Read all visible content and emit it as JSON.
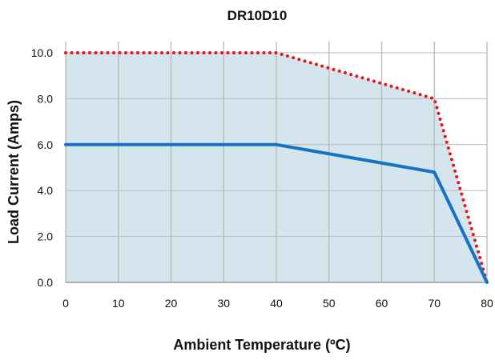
{
  "chart_data": {
    "type": "line",
    "title": "DR10D10",
    "xlabel": "Ambient Temperature (ºC)",
    "ylabel": "Load Current (Amps)",
    "xlim": [
      0,
      80
    ],
    "ylim": [
      0,
      10
    ],
    "x_ticks": [
      "0",
      "10",
      "20",
      "30",
      "40",
      "50",
      "60",
      "70",
      "80"
    ],
    "y_ticks": [
      "0.0",
      "2.0",
      "4.0",
      "6.0",
      "8.0",
      "10.0"
    ],
    "grid": true,
    "legend": "none",
    "series": [
      {
        "x": [
          0,
          40,
          70,
          80
        ],
        "y": [
          10,
          10,
          8,
          0
        ],
        "style": "dotted",
        "color": "#e8141b"
      },
      {
        "x": [
          0,
          40,
          70,
          80
        ],
        "y": [
          6,
          6,
          4.8,
          0
        ],
        "style": "solid",
        "color": "#1574c1"
      }
    ],
    "fill_color": "#d5e5ed",
    "grid_color": "#b9b9b9"
  }
}
